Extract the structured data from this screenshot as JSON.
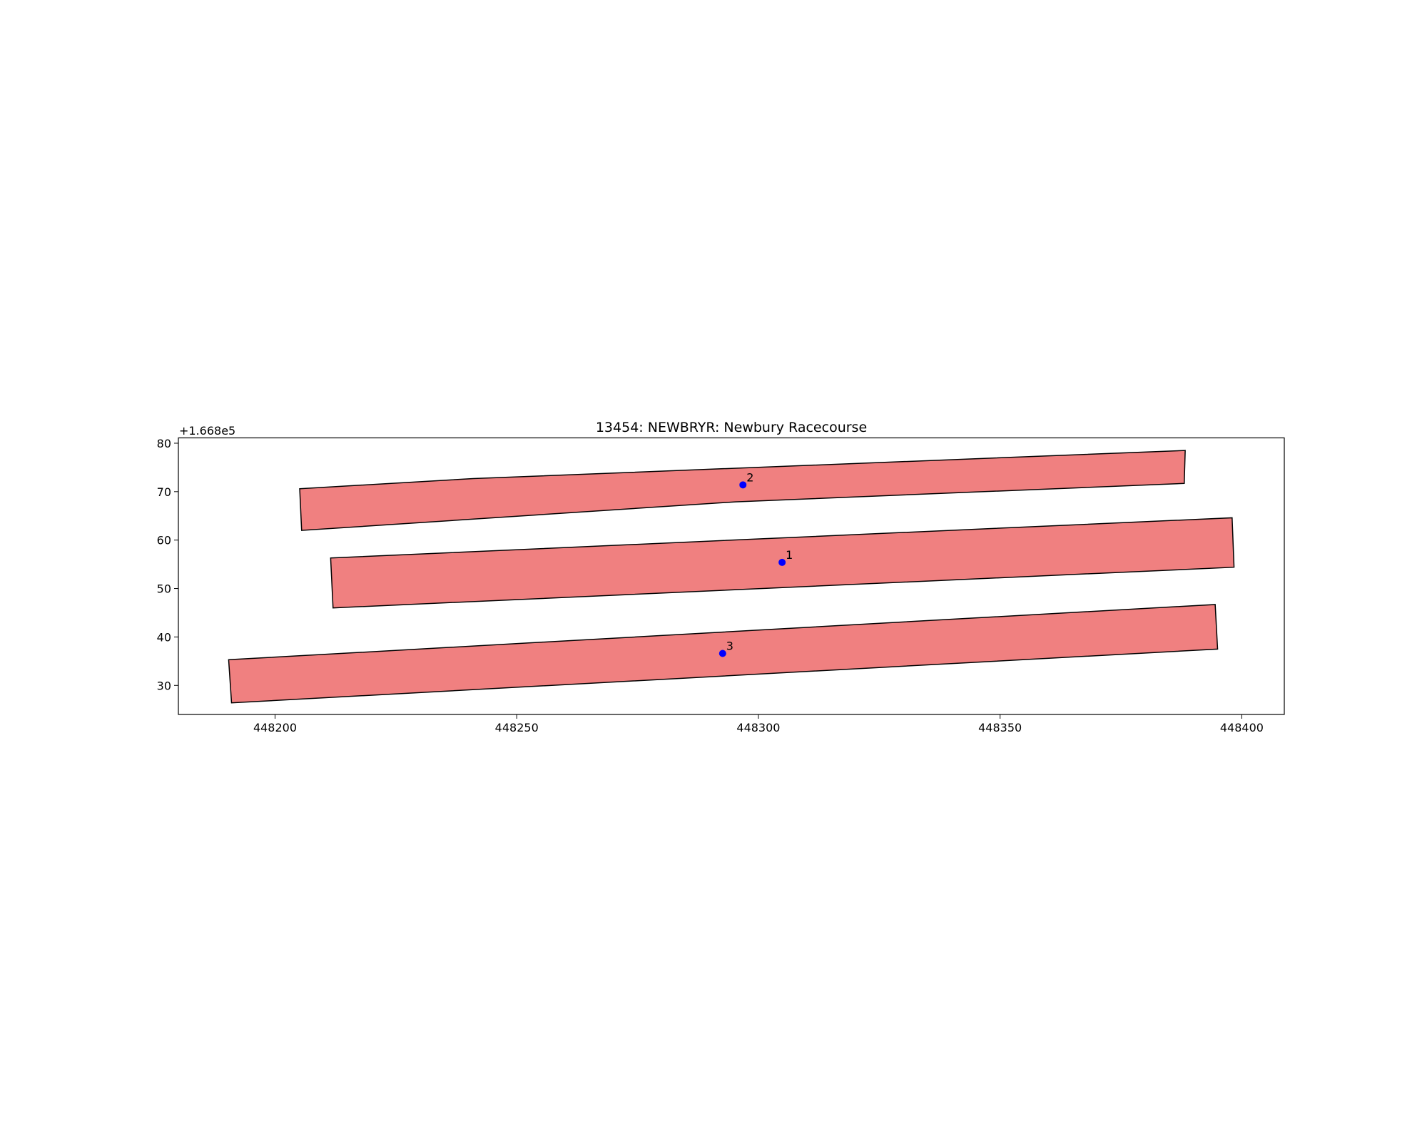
{
  "chart_data": {
    "type": "polygon",
    "title": "13454: NEWBRYR: Newbury Racecourse",
    "y_offset_label": "+1.668e5",
    "xlim": [
      448180,
      448408.8
    ],
    "ylim": [
      24.0,
      81.1
    ],
    "xticks": [
      448200,
      448250,
      448300,
      448350,
      448400
    ],
    "yticks": [
      30,
      40,
      50,
      60,
      70,
      80
    ],
    "fill_color": "#f08080",
    "edge_color": "#000000",
    "point_color": "#0000ff",
    "polygons": [
      {
        "x": [
          448205.1,
          448241.0,
          448388.3,
          448388.1,
          448295.3,
          448205.5
        ],
        "y": [
          70.6,
          72.7,
          78.5,
          71.7,
          67.9,
          62.0
        ]
      },
      {
        "x": [
          448211.5,
          448398.0,
          448398.4,
          448212.0
        ],
        "y": [
          56.3,
          64.6,
          54.4,
          46.0
        ]
      },
      {
        "x": [
          448190.4,
          448394.5,
          448395.0,
          448191.0
        ],
        "y": [
          35.3,
          46.7,
          37.5,
          26.4
        ]
      }
    ],
    "points": {
      "x": [
        448304.9,
        448296.8,
        448292.6
      ],
      "y": [
        55.4,
        71.4,
        36.6
      ],
      "labels": [
        "1",
        "2",
        "3"
      ]
    }
  }
}
